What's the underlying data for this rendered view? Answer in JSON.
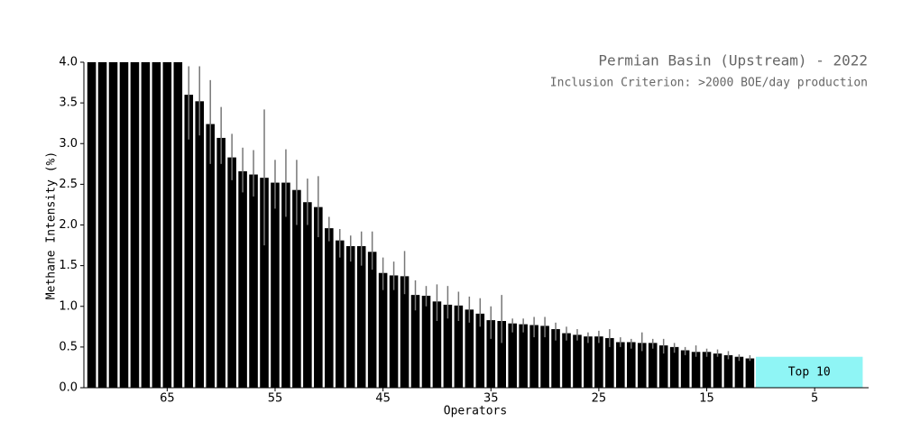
{
  "chart_data": {
    "type": "bar",
    "title": "Permian Basin (Upstream) - 2022",
    "subtitle": "Inclusion Criterion: >2000 BOE/day production",
    "xlabel": "Operators",
    "ylabel": "Methane Intensity (%)",
    "xlim": [
      72.3,
      0
    ],
    "xticks": [
      65,
      55,
      45,
      35,
      25,
      15,
      5
    ],
    "ylim": [
      0,
      4
    ],
    "yticks": [
      {
        "value": 0,
        "label": "0.0"
      },
      0.5,
      {
        "value": 1,
        "label": "1.0"
      },
      1.5,
      {
        "value": 2,
        "label": "2.0"
      },
      2.5,
      {
        "value": 3,
        "label": "3.0"
      },
      3.5,
      {
        "value": 4,
        "label": "4.0"
      }
    ],
    "x": [
      72,
      71,
      70,
      69,
      68,
      67,
      66,
      65,
      64,
      63,
      62,
      61,
      60,
      59,
      58,
      57,
      56,
      55,
      54,
      53,
      52,
      51,
      50,
      49,
      48,
      47,
      46,
      45,
      44,
      43,
      42,
      41,
      40,
      39,
      38,
      37,
      36,
      35,
      34,
      33,
      32,
      31,
      30,
      29,
      28,
      27,
      26,
      25,
      24,
      23,
      22,
      21,
      20,
      19,
      18,
      17,
      16,
      15,
      14,
      13,
      12,
      11
    ],
    "series": [
      {
        "color": "#000000",
        "error_color": "#777777",
        "values": [
          4.0,
          4.0,
          4.0,
          4.0,
          4.0,
          4.0,
          4.0,
          4.0,
          4.0,
          3.6,
          3.52,
          3.24,
          3.07,
          2.83,
          2.66,
          2.62,
          2.58,
          2.52,
          2.52,
          2.43,
          2.28,
          2.22,
          1.96,
          1.81,
          1.74,
          1.74,
          1.67,
          1.41,
          1.38,
          1.37,
          1.14,
          1.13,
          1.06,
          1.02,
          1.01,
          0.96,
          0.91,
          0.83,
          0.82,
          0.79,
          0.78,
          0.77,
          0.76,
          0.72,
          0.67,
          0.65,
          0.63,
          0.63,
          0.61,
          0.56,
          0.56,
          0.55,
          0.55,
          0.52,
          0.5,
          0.46,
          0.44,
          0.44,
          0.42,
          0.4,
          0.38,
          0.36
        ],
        "error_low": [
          null,
          null,
          null,
          null,
          null,
          null,
          null,
          null,
          null,
          3.05,
          3.1,
          2.75,
          2.75,
          2.55,
          2.4,
          2.35,
          1.75,
          2.2,
          2.1,
          2.0,
          2.0,
          1.85,
          1.8,
          1.6,
          1.55,
          1.5,
          1.45,
          1.2,
          1.2,
          1.15,
          0.95,
          1.0,
          0.82,
          0.85,
          0.82,
          0.8,
          0.75,
          0.6,
          0.55,
          0.68,
          0.68,
          0.62,
          0.62,
          0.58,
          0.58,
          0.58,
          0.55,
          0.55,
          0.5,
          0.5,
          0.48,
          0.45,
          0.48,
          0.42,
          0.43,
          0.4,
          0.38,
          0.38,
          0.38,
          0.35,
          0.33,
          0.33
        ],
        "error_high": [
          null,
          null,
          null,
          null,
          null,
          null,
          null,
          null,
          null,
          3.95,
          3.95,
          3.78,
          3.45,
          3.12,
          2.95,
          2.92,
          3.42,
          2.8,
          2.93,
          2.8,
          2.57,
          2.6,
          2.1,
          1.95,
          1.87,
          1.92,
          1.92,
          1.6,
          1.55,
          1.68,
          1.32,
          1.25,
          1.27,
          1.25,
          1.18,
          1.12,
          1.1,
          1.0,
          1.14,
          0.85,
          0.85,
          0.87,
          0.87,
          0.8,
          0.75,
          0.72,
          0.68,
          0.7,
          0.72,
          0.62,
          0.6,
          0.68,
          0.6,
          0.6,
          0.55,
          0.5,
          0.52,
          0.48,
          0.47,
          0.45,
          0.41,
          0.4
        ]
      }
    ],
    "highlight": {
      "label": "Top 10",
      "range": [
        10,
        1
      ],
      "value": 0.38,
      "color": "#8ff5f5"
    }
  }
}
